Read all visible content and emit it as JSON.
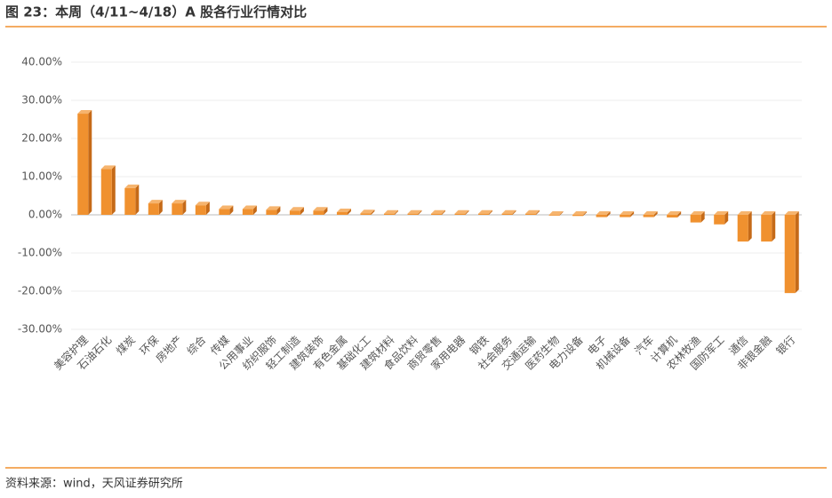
{
  "title": "图 23：本周（4/11~4/18）A 股各行业行情对比",
  "source": "资料来源：wind，天风证券研究所",
  "chart_data": {
    "type": "bar",
    "color": "#F0912F",
    "grid": true,
    "categories": [
      "美容护理",
      "石油石化",
      "煤炭",
      "环保",
      "房地产",
      "综合",
      "传媒",
      "公用事业",
      "纺织服饰",
      "轻工制造",
      "建筑装饰",
      "有色金属",
      "基础化工",
      "建筑材料",
      "食品饮料",
      "商贸零售",
      "家用电器",
      "钢铁",
      "社会服务",
      "交通运输",
      "医药生物",
      "电力设备",
      "电子",
      "机械设备",
      "汽车",
      "计算机",
      "农林牧渔",
      "国防军工",
      "通信",
      "非银金融",
      "银行"
    ],
    "values": [
      26.5,
      12,
      7,
      3,
      3,
      2.5,
      1.5,
      1.5,
      1.3,
      1.1,
      1.1,
      0.7,
      0.4,
      0.3,
      0.3,
      0.3,
      0.3,
      0.3,
      0.3,
      0.3,
      -0.2,
      -0.3,
      -0.6,
      -0.6,
      -0.6,
      -0.7,
      -2,
      -2.5,
      -7,
      -7,
      -20.5
    ],
    "ylim": [
      -30,
      40
    ],
    "yticks": [
      {
        "value": -30,
        "label": "-30.00%"
      },
      {
        "value": -20,
        "label": "-20.00%"
      },
      {
        "value": -10,
        "label": "-10.00%"
      },
      {
        "value": 0,
        "label": "0.00%"
      },
      {
        "value": 10,
        "label": "10.00%"
      },
      {
        "value": 20,
        "label": "20.00%"
      },
      {
        "value": 30,
        "label": "30.00%"
      },
      {
        "value": 40,
        "label": "40.00%"
      }
    ]
  }
}
